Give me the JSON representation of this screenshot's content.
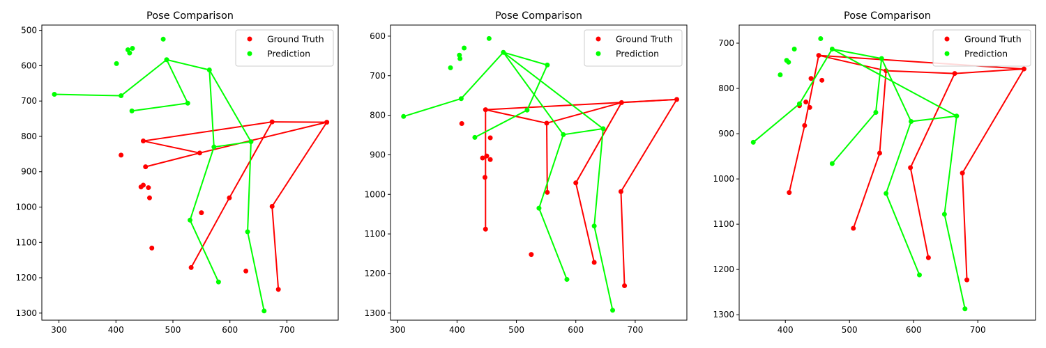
{
  "chart_data": [
    {
      "type": "scatter",
      "title": "Pose Comparison",
      "xlabel": "",
      "ylabel": "",
      "xlim": [
        270,
        790
      ],
      "ylim": [
        1320,
        485
      ],
      "y_inverted": true,
      "xticks": [
        300,
        400,
        500,
        600,
        700
      ],
      "yticks": [
        500,
        600,
        700,
        800,
        900,
        1000,
        1100,
        1200,
        1300
      ],
      "legend_position": "top-right",
      "series": [
        {
          "name": "Ground Truth",
          "color": "#ff0000",
          "points": [
            [
              448,
              813
            ],
            [
              547,
              847
            ],
            [
              674,
              759
            ],
            [
              770,
              760
            ],
            [
              599,
              974
            ],
            [
              674,
              998
            ],
            [
              532,
              1171
            ],
            [
              685,
              1233
            ],
            [
              550,
              1016
            ],
            [
              628,
              1181
            ],
            [
              452,
              886
            ],
            [
              457,
              945
            ],
            [
              459,
              974
            ],
            [
              463,
              1116
            ],
            [
              444,
              943
            ],
            [
              448,
              938
            ],
            [
              409,
              853
            ]
          ],
          "edges": [
            [
              0,
              1
            ],
            [
              0,
              2
            ],
            [
              1,
              3
            ],
            [
              2,
              3
            ],
            [
              1,
              10
            ],
            [
              2,
              4
            ],
            [
              3,
              5
            ],
            [
              5,
              7
            ],
            [
              4,
              6
            ]
          ]
        },
        {
          "name": "Prediction",
          "color": "#00ff00",
          "points": [
            [
              489,
              583
            ],
            [
              564,
              612
            ],
            [
              409,
              685
            ],
            [
              292,
              681
            ],
            [
              428,
              728
            ],
            [
              526,
              706
            ],
            [
              572,
              830
            ],
            [
              637,
              815
            ],
            [
              530,
              1037
            ],
            [
              631,
              1070
            ],
            [
              580,
              1212
            ],
            [
              660,
              1294
            ],
            [
              424,
              564
            ],
            [
              429,
              551
            ],
            [
              421,
              555
            ],
            [
              401,
              594
            ],
            [
              483,
              525
            ]
          ],
          "edges": [
            [
              0,
              1
            ],
            [
              0,
              2
            ],
            [
              2,
              3
            ],
            [
              4,
              5
            ],
            [
              5,
              0
            ],
            [
              1,
              6
            ],
            [
              1,
              7
            ],
            [
              6,
              7
            ],
            [
              6,
              8
            ],
            [
              7,
              9
            ],
            [
              8,
              10
            ],
            [
              9,
              11
            ]
          ]
        }
      ]
    },
    {
      "type": "scatter",
      "title": "Pose Comparison",
      "xlabel": "",
      "ylabel": "",
      "xlim": [
        288,
        787
      ],
      "ylim": [
        1318,
        572
      ],
      "y_inverted": true,
      "xticks": [
        300,
        400,
        500,
        600,
        700
      ],
      "yticks": [
        600,
        700,
        800,
        900,
        1000,
        1100,
        1200,
        1300
      ],
      "legend_position": "top-right",
      "series": [
        {
          "name": "Ground Truth",
          "color": "#ff0000",
          "points": [
            [
              448,
              786
            ],
            [
              551,
              820
            ],
            [
              677,
              768
            ],
            [
              770,
              760
            ],
            [
              600,
              971
            ],
            [
              676,
              993
            ],
            [
              525,
              1152
            ],
            [
              682,
              1231
            ],
            [
              552,
              995
            ],
            [
              631,
              1172
            ],
            [
              448,
              1088
            ],
            [
              450,
              903
            ],
            [
              447,
              957
            ],
            [
              456,
              857
            ],
            [
              456,
              912
            ],
            [
              443,
              908
            ],
            [
              408,
              821
            ]
          ],
          "edges": [
            [
              0,
              1
            ],
            [
              0,
              3
            ],
            [
              1,
              2
            ],
            [
              2,
              3
            ],
            [
              0,
              10
            ],
            [
              1,
              8
            ],
            [
              2,
              4
            ],
            [
              4,
              9
            ],
            [
              3,
              5
            ],
            [
              5,
              7
            ]
          ]
        },
        {
          "name": "Prediction",
          "color": "#00ff00",
          "points": [
            [
              478,
              641
            ],
            [
              552,
              673
            ],
            [
              407,
              758
            ],
            [
              310,
              803
            ],
            [
              430,
              856
            ],
            [
              518,
              787
            ],
            [
              579,
              849
            ],
            [
              646,
              834
            ],
            [
              538,
              1035
            ],
            [
              631,
              1080
            ],
            [
              585,
              1215
            ],
            [
              662,
              1293
            ],
            [
              412,
              630
            ],
            [
              404,
              648
            ],
            [
              405,
              657
            ],
            [
              389,
              680
            ],
            [
              454,
              606
            ]
          ],
          "edges": [
            [
              0,
              1
            ],
            [
              0,
              2
            ],
            [
              2,
              3
            ],
            [
              4,
              5
            ],
            [
              5,
              1
            ],
            [
              0,
              6
            ],
            [
              0,
              7
            ],
            [
              6,
              7
            ],
            [
              6,
              8
            ],
            [
              8,
              10
            ],
            [
              7,
              9
            ],
            [
              9,
              11
            ]
          ]
        }
      ]
    },
    {
      "type": "scatter",
      "title": "Pose Comparison",
      "xlabel": "",
      "ylabel": "",
      "xlim": [
        328,
        790
      ],
      "ylim": [
        1312,
        660
      ],
      "y_inverted": true,
      "xticks": [
        400,
        500,
        600,
        700
      ],
      "yticks": [
        700,
        800,
        900,
        1000,
        1100,
        1200,
        1300
      ],
      "legend_position": "top-right",
      "series": [
        {
          "name": "Ground Truth",
          "color": "#ff0000",
          "points": [
            [
              452,
              727
            ],
            [
              557,
              761
            ],
            [
              664,
              767
            ],
            [
              772,
              757
            ],
            [
              595,
              975
            ],
            [
              676,
              987
            ],
            [
              506,
              1109
            ],
            [
              683,
              1223
            ],
            [
              547,
              943
            ],
            [
              623,
              1174
            ],
            [
              438,
              842
            ],
            [
              430,
              882
            ],
            [
              406,
              1030
            ],
            [
              422,
              838
            ],
            [
              432,
              830
            ],
            [
              440,
              778
            ],
            [
              457,
              782
            ]
          ],
          "edges": [
            [
              0,
              1
            ],
            [
              0,
              3
            ],
            [
              1,
              2
            ],
            [
              2,
              3
            ],
            [
              0,
              11
            ],
            [
              11,
              12
            ],
            [
              1,
              8
            ],
            [
              8,
              6
            ],
            [
              2,
              4
            ],
            [
              4,
              9
            ],
            [
              3,
              5
            ],
            [
              5,
              7
            ]
          ]
        },
        {
          "name": "Prediction",
          "color": "#00ff00",
          "points": [
            [
              473,
              713
            ],
            [
              550,
              734
            ],
            [
              422,
              834
            ],
            [
              350,
              919
            ],
            [
              473,
              966
            ],
            [
              541,
              853
            ],
            [
              596,
              873
            ],
            [
              667,
              861
            ],
            [
              557,
              1032
            ],
            [
              648,
              1078
            ],
            [
              609,
              1212
            ],
            [
              680,
              1287
            ],
            [
              414,
              713
            ],
            [
              405,
              742
            ],
            [
              402,
              738
            ],
            [
              392,
              770
            ],
            [
              455,
              690
            ]
          ],
          "edges": [
            [
              0,
              1
            ],
            [
              0,
              2
            ],
            [
              2,
              3
            ],
            [
              4,
              5
            ],
            [
              5,
              1
            ],
            [
              0,
              7
            ],
            [
              1,
              6
            ],
            [
              6,
              7
            ],
            [
              6,
              8
            ],
            [
              8,
              10
            ],
            [
              7,
              9
            ],
            [
              9,
              11
            ]
          ]
        }
      ]
    }
  ]
}
